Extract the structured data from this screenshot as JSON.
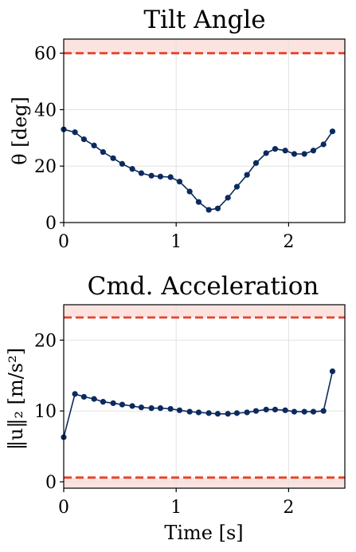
{
  "colors": {
    "series": "#0b2a5e",
    "limit": "#e8432a",
    "band": "#fde3df",
    "grid": "#e2e2e2"
  },
  "chart_data": [
    {
      "type": "line",
      "title": "Tilt Angle",
      "ylabel": "θ [deg]",
      "xlabel": "",
      "xlim": [
        0,
        2.5
      ],
      "ylim": [
        0,
        65
      ],
      "xticks": [
        0,
        1,
        2
      ],
      "yticks": [
        0,
        20,
        40,
        60
      ],
      "xtick_labels": [
        "0",
        "1",
        "2"
      ],
      "ytick_labels": [
        "0",
        "20",
        "40",
        "60"
      ],
      "grid": true,
      "limits": [
        60
      ],
      "shaded_ranges": [
        [
          60,
          65
        ]
      ],
      "series": [
        {
          "x": [
            0,
            0.1,
            0.18,
            0.27,
            0.35,
            0.44,
            0.52,
            0.61,
            0.69,
            0.78,
            0.86,
            0.95,
            1.03,
            1.12,
            1.2,
            1.29,
            1.37,
            1.46,
            1.54,
            1.63,
            1.71,
            1.8,
            1.88,
            1.97,
            2.05,
            2.14,
            2.22,
            2.31,
            2.39
          ],
          "values": [
            33,
            32,
            29.5,
            27.3,
            25,
            22.8,
            20.8,
            19,
            17.5,
            16.6,
            16.3,
            16.1,
            14.5,
            11,
            7.3,
            4.5,
            5,
            8.8,
            12.7,
            16.9,
            21.1,
            24.6,
            26.1,
            25.5,
            24.3,
            24.3,
            25.5,
            27.7,
            32.3
          ]
        }
      ]
    },
    {
      "type": "line",
      "title": "Cmd. Acceleration",
      "ylabel": "‖u‖₂ [m/s²]",
      "xlabel": "Time [s]",
      "xlim": [
        0,
        2.5
      ],
      "ylim": [
        -0.9,
        25
      ],
      "xticks": [
        0,
        1,
        2
      ],
      "yticks": [
        0,
        10,
        20
      ],
      "xtick_labels": [
        "0",
        "1",
        "2"
      ],
      "ytick_labels": [
        "0",
        "10",
        "20"
      ],
      "grid": true,
      "limits": [
        0.6,
        23.2
      ],
      "shaded_ranges": [
        [
          -0.9,
          0.6
        ],
        [
          23.2,
          25
        ]
      ],
      "series": [
        {
          "x": [
            0,
            0.1,
            0.18,
            0.27,
            0.35,
            0.44,
            0.52,
            0.61,
            0.69,
            0.78,
            0.86,
            0.95,
            1.03,
            1.12,
            1.2,
            1.29,
            1.37,
            1.46,
            1.54,
            1.63,
            1.71,
            1.8,
            1.88,
            1.97,
            2.05,
            2.14,
            2.22,
            2.31,
            2.39
          ],
          "values": [
            6.3,
            12.4,
            12,
            11.7,
            11.3,
            11.1,
            10.9,
            10.7,
            10.5,
            10.4,
            10.4,
            10.3,
            10.1,
            9.9,
            9.8,
            9.7,
            9.6,
            9.6,
            9.7,
            9.8,
            10,
            10.2,
            10.2,
            10.1,
            9.9,
            9.9,
            9.9,
            10,
            15.6
          ]
        }
      ]
    }
  ]
}
